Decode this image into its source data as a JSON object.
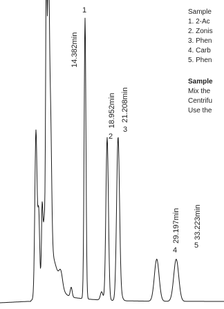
{
  "chart_data": {
    "type": "line",
    "title": "",
    "xlabel": "",
    "ylabel": "",
    "grid": false,
    "legend": "none",
    "line_color": "#1a1a1a",
    "peaks": [
      {
        "number": "1",
        "retention_time": 14.382,
        "label": "14.382min",
        "relative_height": 1.0
      },
      {
        "number": "2",
        "retention_time": 18.952,
        "label": "18.952min",
        "relative_height": 0.58
      },
      {
        "number": "3",
        "retention_time": 21.208,
        "label": "21.208min",
        "relative_height": 0.58
      },
      {
        "number": "4",
        "retention_time": 29.197,
        "label": "29.197min",
        "relative_height": 0.15
      },
      {
        "number": "5",
        "retention_time": 33.223,
        "label": "33.223min",
        "relative_height": 0.15
      }
    ]
  },
  "info": {
    "lines": [
      "Sample",
      "1. 2-Ac",
      "2. Zonis",
      "3. Phen",
      "4. Carb",
      "5. Phen"
    ],
    "prep_heading": "Sample",
    "prep_lines": [
      "Mix the",
      "Centrifu",
      "Use the"
    ]
  }
}
